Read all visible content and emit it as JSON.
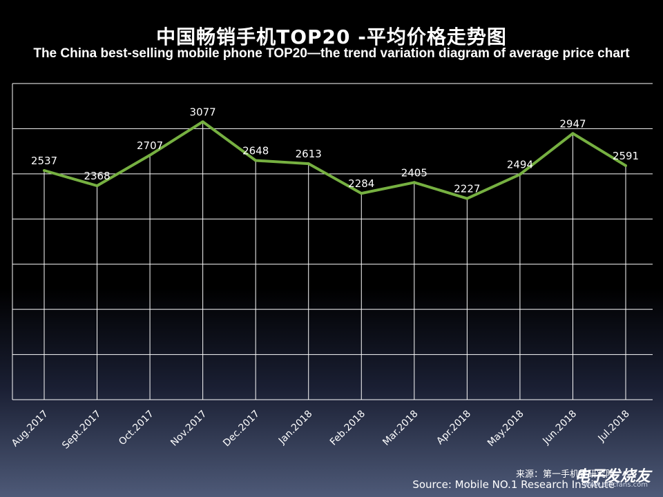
{
  "title": "中国畅销手机TOP20 -平均价格走势图",
  "subtitle": "The China best-selling mobile phone TOP20—the trend variation diagram of average price chart",
  "source_cn": "来源：第一手机界研究院",
  "source_en": "Source: Mobile NO.1 Research Institute",
  "watermark": "电子发烧友",
  "watermark_url": "www.elecfans.com",
  "colors": {
    "line": "#76b041",
    "grid": "#ffffff",
    "text": "#ffffff"
  },
  "chart_data": {
    "type": "line",
    "title": "中国畅销手机TOP20 -平均价格走势图",
    "subtitle": "The China best-selling mobile phone TOP20—the trend variation diagram of average price chart",
    "categories": [
      "Aug.2017",
      "Sept.2017",
      "Oct.2017",
      "Nov.2017",
      "Dec.2017",
      "Jan.2018",
      "Feb.2018",
      "Mar.2018",
      "Apr.2018",
      "May.2018",
      "Jun.2018",
      "Jul.2018"
    ],
    "series": [
      {
        "values": [
          2537,
          2368,
          2707,
          3077,
          2648,
          2613,
          2284,
          2405,
          2227,
          2494,
          2947,
          2591
        ]
      }
    ],
    "ylim": [
      0,
      3500
    ],
    "grid": true,
    "data_labels": true
  }
}
